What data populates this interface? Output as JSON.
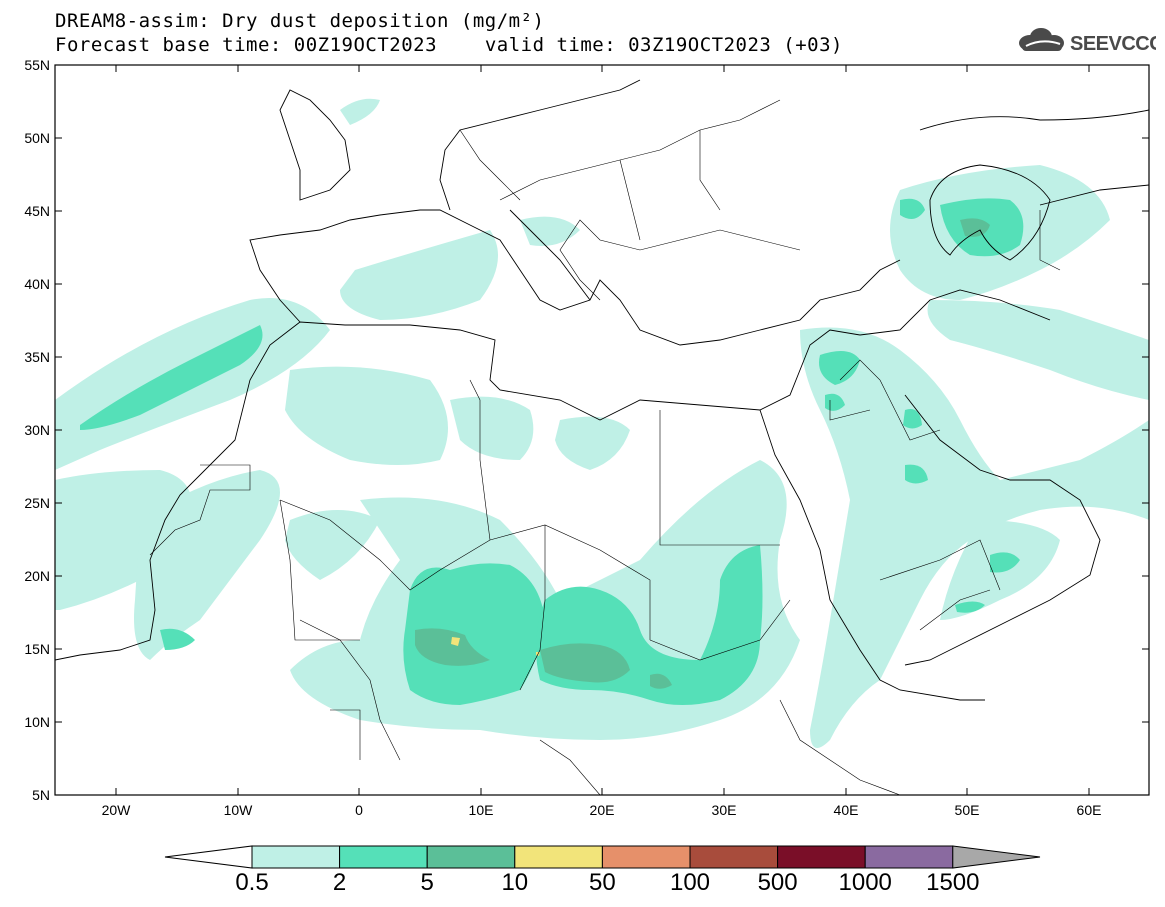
{
  "title": {
    "line1": "DREAM8-assim: Dry dust deposition (mg/m²)",
    "line2_left": "Forecast base time: 00Z19OCT2023",
    "line2_right": "valid time: 03Z19OCT2023 (+03)"
  },
  "logo": {
    "text": "SEEVCCC",
    "icon": "cloud-icon",
    "color": "#4a4a4a"
  },
  "axes": {
    "lat_labels": [
      "55N",
      "50N",
      "45N",
      "40N",
      "35N",
      "30N",
      "25N",
      "20N",
      "15N",
      "10N",
      "5N"
    ],
    "lon_labels": [
      "20W",
      "10W",
      "0",
      "10E",
      "20E",
      "30E",
      "40E",
      "50E",
      "60E"
    ]
  },
  "colorbar": {
    "labels": [
      "0.5",
      "2",
      "5",
      "10",
      "50",
      "100",
      "500",
      "1000",
      "1500"
    ],
    "colors": [
      "#bff0e6",
      "#55e0b8",
      "#5bbf98",
      "#f2e47a",
      "#e6906a",
      "#a84c3c",
      "#7a0e28",
      "#8a6aa0"
    ],
    "under_color": "#ffffff",
    "over_color": "#a8a8a8"
  },
  "colors": {
    "light": "#bff0e6",
    "medium": "#55e0b8",
    "dark": "#5bbf98",
    "yellow": "#f2e47a",
    "border": "#000000"
  }
}
